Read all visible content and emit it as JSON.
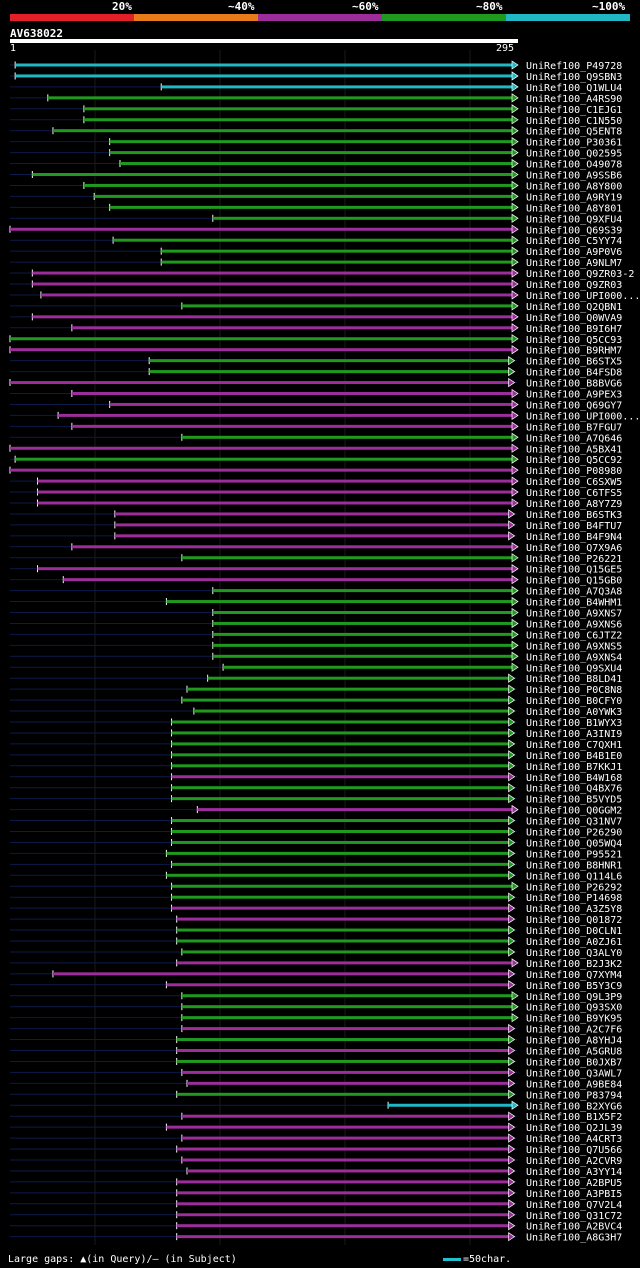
{
  "legend": {
    "labels": [
      "20%",
      "~40%",
      "~60%",
      "~80%",
      "~100%"
    ],
    "colors": [
      "#e3202a",
      "#e87b1a",
      "#9c2d9a",
      "#1f9a1f",
      "#1fb8c4"
    ]
  },
  "query": {
    "id": "AV638022",
    "start_label": "1",
    "end_label": "295"
  },
  "footer": {
    "gaps": "Large gaps: ▲(in Query)/– (in Subject)",
    "scale": "=50char."
  },
  "chart_data": {
    "type": "alignment",
    "query_length": 295,
    "hits": [
      {
        "name": "UniRef100_P49728",
        "s": 3,
        "e": 295,
        "c": 4
      },
      {
        "name": "UniRef100_Q9SBN3",
        "s": 3,
        "e": 295,
        "c": 4
      },
      {
        "name": "UniRef100_Q1WLU4",
        "s": 88,
        "e": 295,
        "c": 4
      },
      {
        "name": "UniRef100_A4RS90",
        "s": 22,
        "e": 295,
        "c": 3
      },
      {
        "name": "UniRef100_C1EJG1",
        "s": 43,
        "e": 295,
        "c": 3
      },
      {
        "name": "UniRef100_C1N550",
        "s": 43,
        "e": 295,
        "c": 3
      },
      {
        "name": "UniRef100_Q5ENT8",
        "s": 25,
        "e": 295,
        "c": 3
      },
      {
        "name": "UniRef100_P30361",
        "s": 58,
        "e": 295,
        "c": 3
      },
      {
        "name": "UniRef100_Q02595",
        "s": 58,
        "e": 295,
        "c": 3
      },
      {
        "name": "UniRef100_O49078",
        "s": 64,
        "e": 295,
        "c": 3
      },
      {
        "name": "UniRef100_A9SSB6",
        "s": 13,
        "e": 295,
        "c": 3
      },
      {
        "name": "UniRef100_A8Y800",
        "s": 43,
        "e": 295,
        "c": 3
      },
      {
        "name": "UniRef100_A9RY19",
        "s": 49,
        "e": 295,
        "c": 3
      },
      {
        "name": "UniRef100_A8Y801",
        "s": 58,
        "e": 295,
        "c": 3
      },
      {
        "name": "UniRef100_Q9XFU4",
        "s": 118,
        "e": 295,
        "c": 3
      },
      {
        "name": "UniRef100_Q69S39",
        "s": 0,
        "e": 295,
        "c": 2
      },
      {
        "name": "UniRef100_C5YY74",
        "s": 60,
        "e": 295,
        "c": 3
      },
      {
        "name": "UniRef100_A9P0V6",
        "s": 88,
        "e": 295,
        "c": 3
      },
      {
        "name": "UniRef100_A9NLM7",
        "s": 88,
        "e": 295,
        "c": 3
      },
      {
        "name": "UniRef100_Q9ZR03-2",
        "s": 13,
        "e": 295,
        "c": 2
      },
      {
        "name": "UniRef100_Q9ZR03",
        "s": 13,
        "e": 295,
        "c": 2
      },
      {
        "name": "UniRef100_UPI000...",
        "s": 18,
        "e": 295,
        "c": 2
      },
      {
        "name": "UniRef100_Q2QBN1",
        "s": 100,
        "e": 295,
        "c": 3
      },
      {
        "name": "UniRef100_Q0WVA9",
        "s": 13,
        "e": 295,
        "c": 2
      },
      {
        "name": "UniRef100_B9I6H7",
        "s": 36,
        "e": 295,
        "c": 2
      },
      {
        "name": "UniRef100_Q5CC93",
        "s": 0,
        "e": 295,
        "c": 3
      },
      {
        "name": "UniRef100_B9RHM7",
        "s": 0,
        "e": 295,
        "c": 2
      },
      {
        "name": "UniRef100_B6STX5",
        "s": 81,
        "e": 293,
        "c": 3
      },
      {
        "name": "UniRef100_B4FSD8",
        "s": 81,
        "e": 293,
        "c": 3
      },
      {
        "name": "UniRef100_B8BVG6",
        "s": 0,
        "e": 293,
        "c": 2
      },
      {
        "name": "UniRef100_A9PEX3",
        "s": 36,
        "e": 295,
        "c": 2
      },
      {
        "name": "UniRef100_Q69GY7",
        "s": 58,
        "e": 295,
        "c": 2
      },
      {
        "name": "UniRef100_UPI000...",
        "s": 28,
        "e": 295,
        "c": 2
      },
      {
        "name": "UniRef100_B7FGU7",
        "s": 36,
        "e": 295,
        "c": 2
      },
      {
        "name": "UniRef100_A7Q646",
        "s": 100,
        "e": 295,
        "c": 3
      },
      {
        "name": "UniRef100_A5BX41",
        "s": 0,
        "e": 295,
        "c": 2
      },
      {
        "name": "UniRef100_Q5CC92",
        "s": 3,
        "e": 295,
        "c": 3
      },
      {
        "name": "UniRef100_P08980",
        "s": 0,
        "e": 295,
        "c": 2
      },
      {
        "name": "UniRef100_C6SXW5",
        "s": 16,
        "e": 295,
        "c": 2
      },
      {
        "name": "UniRef100_C6TFS5",
        "s": 16,
        "e": 295,
        "c": 2
      },
      {
        "name": "UniRef100_A8Y7Z9",
        "s": 16,
        "e": 295,
        "c": 2
      },
      {
        "name": "UniRef100_B6STK3",
        "s": 61,
        "e": 293,
        "c": 2
      },
      {
        "name": "UniRef100_B4FTU7",
        "s": 61,
        "e": 293,
        "c": 2
      },
      {
        "name": "UniRef100_B4F9N4",
        "s": 61,
        "e": 293,
        "c": 2
      },
      {
        "name": "UniRef100_Q7X9A6",
        "s": 36,
        "e": 295,
        "c": 2
      },
      {
        "name": "UniRef100_P26221",
        "s": 100,
        "e": 295,
        "c": 3
      },
      {
        "name": "UniRef100_Q15GE5",
        "s": 16,
        "e": 295,
        "c": 2
      },
      {
        "name": "UniRef100_Q15GB0",
        "s": 31,
        "e": 295,
        "c": 2
      },
      {
        "name": "UniRef100_A7Q3A8",
        "s": 118,
        "e": 295,
        "c": 3
      },
      {
        "name": "UniRef100_B4WHM1",
        "s": 91,
        "e": 295,
        "c": 3
      },
      {
        "name": "UniRef100_A9XNS7",
        "s": 118,
        "e": 295,
        "c": 3
      },
      {
        "name": "UniRef100_A9XNS6",
        "s": 118,
        "e": 295,
        "c": 3
      },
      {
        "name": "UniRef100_C6JTZ2",
        "s": 118,
        "e": 295,
        "c": 3
      },
      {
        "name": "UniRef100_A9XNS5",
        "s": 118,
        "e": 295,
        "c": 3
      },
      {
        "name": "UniRef100_A9XNS4",
        "s": 118,
        "e": 295,
        "c": 3
      },
      {
        "name": "UniRef100_Q9SXU4",
        "s": 124,
        "e": 295,
        "c": 3
      },
      {
        "name": "UniRef100_B8LD41",
        "s": 115,
        "e": 293,
        "c": 3
      },
      {
        "name": "UniRef100_P0C8N8",
        "s": 103,
        "e": 293,
        "c": 3
      },
      {
        "name": "UniRef100_B0CFY0",
        "s": 100,
        "e": 293,
        "c": 3
      },
      {
        "name": "UniRef100_A0YWK3",
        "s": 107,
        "e": 293,
        "c": 3
      },
      {
        "name": "UniRef100_B1WYX3",
        "s": 94,
        "e": 293,
        "c": 3
      },
      {
        "name": "UniRef100_A3INI9",
        "s": 94,
        "e": 293,
        "c": 3
      },
      {
        "name": "UniRef100_C7QXH1",
        "s": 94,
        "e": 293,
        "c": 3
      },
      {
        "name": "UniRef100_B4B1E0",
        "s": 94,
        "e": 293,
        "c": 3
      },
      {
        "name": "UniRef100_B7KKJ1",
        "s": 94,
        "e": 293,
        "c": 3
      },
      {
        "name": "UniRef100_B4W168",
        "s": 94,
        "e": 293,
        "c": 2
      },
      {
        "name": "UniRef100_Q4BX76",
        "s": 94,
        "e": 293,
        "c": 3
      },
      {
        "name": "UniRef100_B5VYD5",
        "s": 94,
        "e": 293,
        "c": 3
      },
      {
        "name": "UniRef100_Q0GGM2",
        "s": 109,
        "e": 295,
        "c": 2
      },
      {
        "name": "UniRef100_Q31NV7",
        "s": 94,
        "e": 293,
        "c": 3
      },
      {
        "name": "UniRef100_P26290",
        "s": 94,
        "e": 293,
        "c": 3
      },
      {
        "name": "UniRef100_Q05WQ4",
        "s": 94,
        "e": 293,
        "c": 3
      },
      {
        "name": "UniRef100_P95521",
        "s": 91,
        "e": 293,
        "c": 3
      },
      {
        "name": "UniRef100_B8HNR1",
        "s": 94,
        "e": 293,
        "c": 3
      },
      {
        "name": "UniRef100_Q114L6",
        "s": 91,
        "e": 293,
        "c": 3
      },
      {
        "name": "UniRef100_P26292",
        "s": 94,
        "e": 295,
        "c": 3
      },
      {
        "name": "UniRef100_P14698",
        "s": 94,
        "e": 293,
        "c": 3
      },
      {
        "name": "UniRef100_A3Z5Y8",
        "s": 94,
        "e": 293,
        "c": 2
      },
      {
        "name": "UniRef100_Q01872",
        "s": 97,
        "e": 293,
        "c": 2
      },
      {
        "name": "UniRef100_D0CLN1",
        "s": 97,
        "e": 293,
        "c": 3
      },
      {
        "name": "UniRef100_A0ZJ61",
        "s": 97,
        "e": 293,
        "c": 3
      },
      {
        "name": "UniRef100_Q3ALY0",
        "s": 100,
        "e": 293,
        "c": 3
      },
      {
        "name": "UniRef100_B2J3K2",
        "s": 97,
        "e": 295,
        "c": 2
      },
      {
        "name": "UniRef100_Q7XYM4",
        "s": 25,
        "e": 293,
        "c": 2
      },
      {
        "name": "UniRef100_B5Y3C9",
        "s": 91,
        "e": 293,
        "c": 2
      },
      {
        "name": "UniRef100_Q9L3P9",
        "s": 100,
        "e": 295,
        "c": 3
      },
      {
        "name": "UniRef100_Q93SX0",
        "s": 100,
        "e": 295,
        "c": 3
      },
      {
        "name": "UniRef100_B9YK95",
        "s": 100,
        "e": 295,
        "c": 3
      },
      {
        "name": "UniRef100_A2C7F6",
        "s": 100,
        "e": 293,
        "c": 2
      },
      {
        "name": "UniRef100_A8YHJ4",
        "s": 97,
        "e": 293,
        "c": 3
      },
      {
        "name": "UniRef100_A5GRU8",
        "s": 97,
        "e": 293,
        "c": 2
      },
      {
        "name": "UniRef100_B0JXB7",
        "s": 97,
        "e": 293,
        "c": 3
      },
      {
        "name": "UniRef100_Q3AWL7",
        "s": 100,
        "e": 293,
        "c": 2
      },
      {
        "name": "UniRef100_A9BE84",
        "s": 103,
        "e": 293,
        "c": 2
      },
      {
        "name": "UniRef100_P83794",
        "s": 97,
        "e": 293,
        "c": 3
      },
      {
        "name": "UniRef100_B2XYG6",
        "s": 220,
        "e": 295,
        "c": 4
      },
      {
        "name": "UniRef100_B1X5F2",
        "s": 100,
        "e": 293,
        "c": 2
      },
      {
        "name": "UniRef100_Q2JL39",
        "s": 91,
        "e": 293,
        "c": 2
      },
      {
        "name": "UniRef100_A4CRT3",
        "s": 100,
        "e": 293,
        "c": 2
      },
      {
        "name": "UniRef100_Q7U566",
        "s": 97,
        "e": 293,
        "c": 2
      },
      {
        "name": "UniRef100_A2CVR9",
        "s": 100,
        "e": 293,
        "c": 2
      },
      {
        "name": "UniRef100_A3YY14",
        "s": 103,
        "e": 293,
        "c": 2
      },
      {
        "name": "UniRef100_A2BPU5",
        "s": 97,
        "e": 293,
        "c": 2
      },
      {
        "name": "UniRef100_A3PBI5",
        "s": 97,
        "e": 293,
        "c": 2
      },
      {
        "name": "UniRef100_Q7V2L4",
        "s": 97,
        "e": 293,
        "c": 2
      },
      {
        "name": "UniRef100_Q31C72",
        "s": 97,
        "e": 293,
        "c": 2
      },
      {
        "name": "UniRef100_A2BVC4",
        "s": 97,
        "e": 293,
        "c": 2
      },
      {
        "name": "UniRef100_A8G3H7",
        "s": 97,
        "e": 293,
        "c": 2
      }
    ]
  }
}
